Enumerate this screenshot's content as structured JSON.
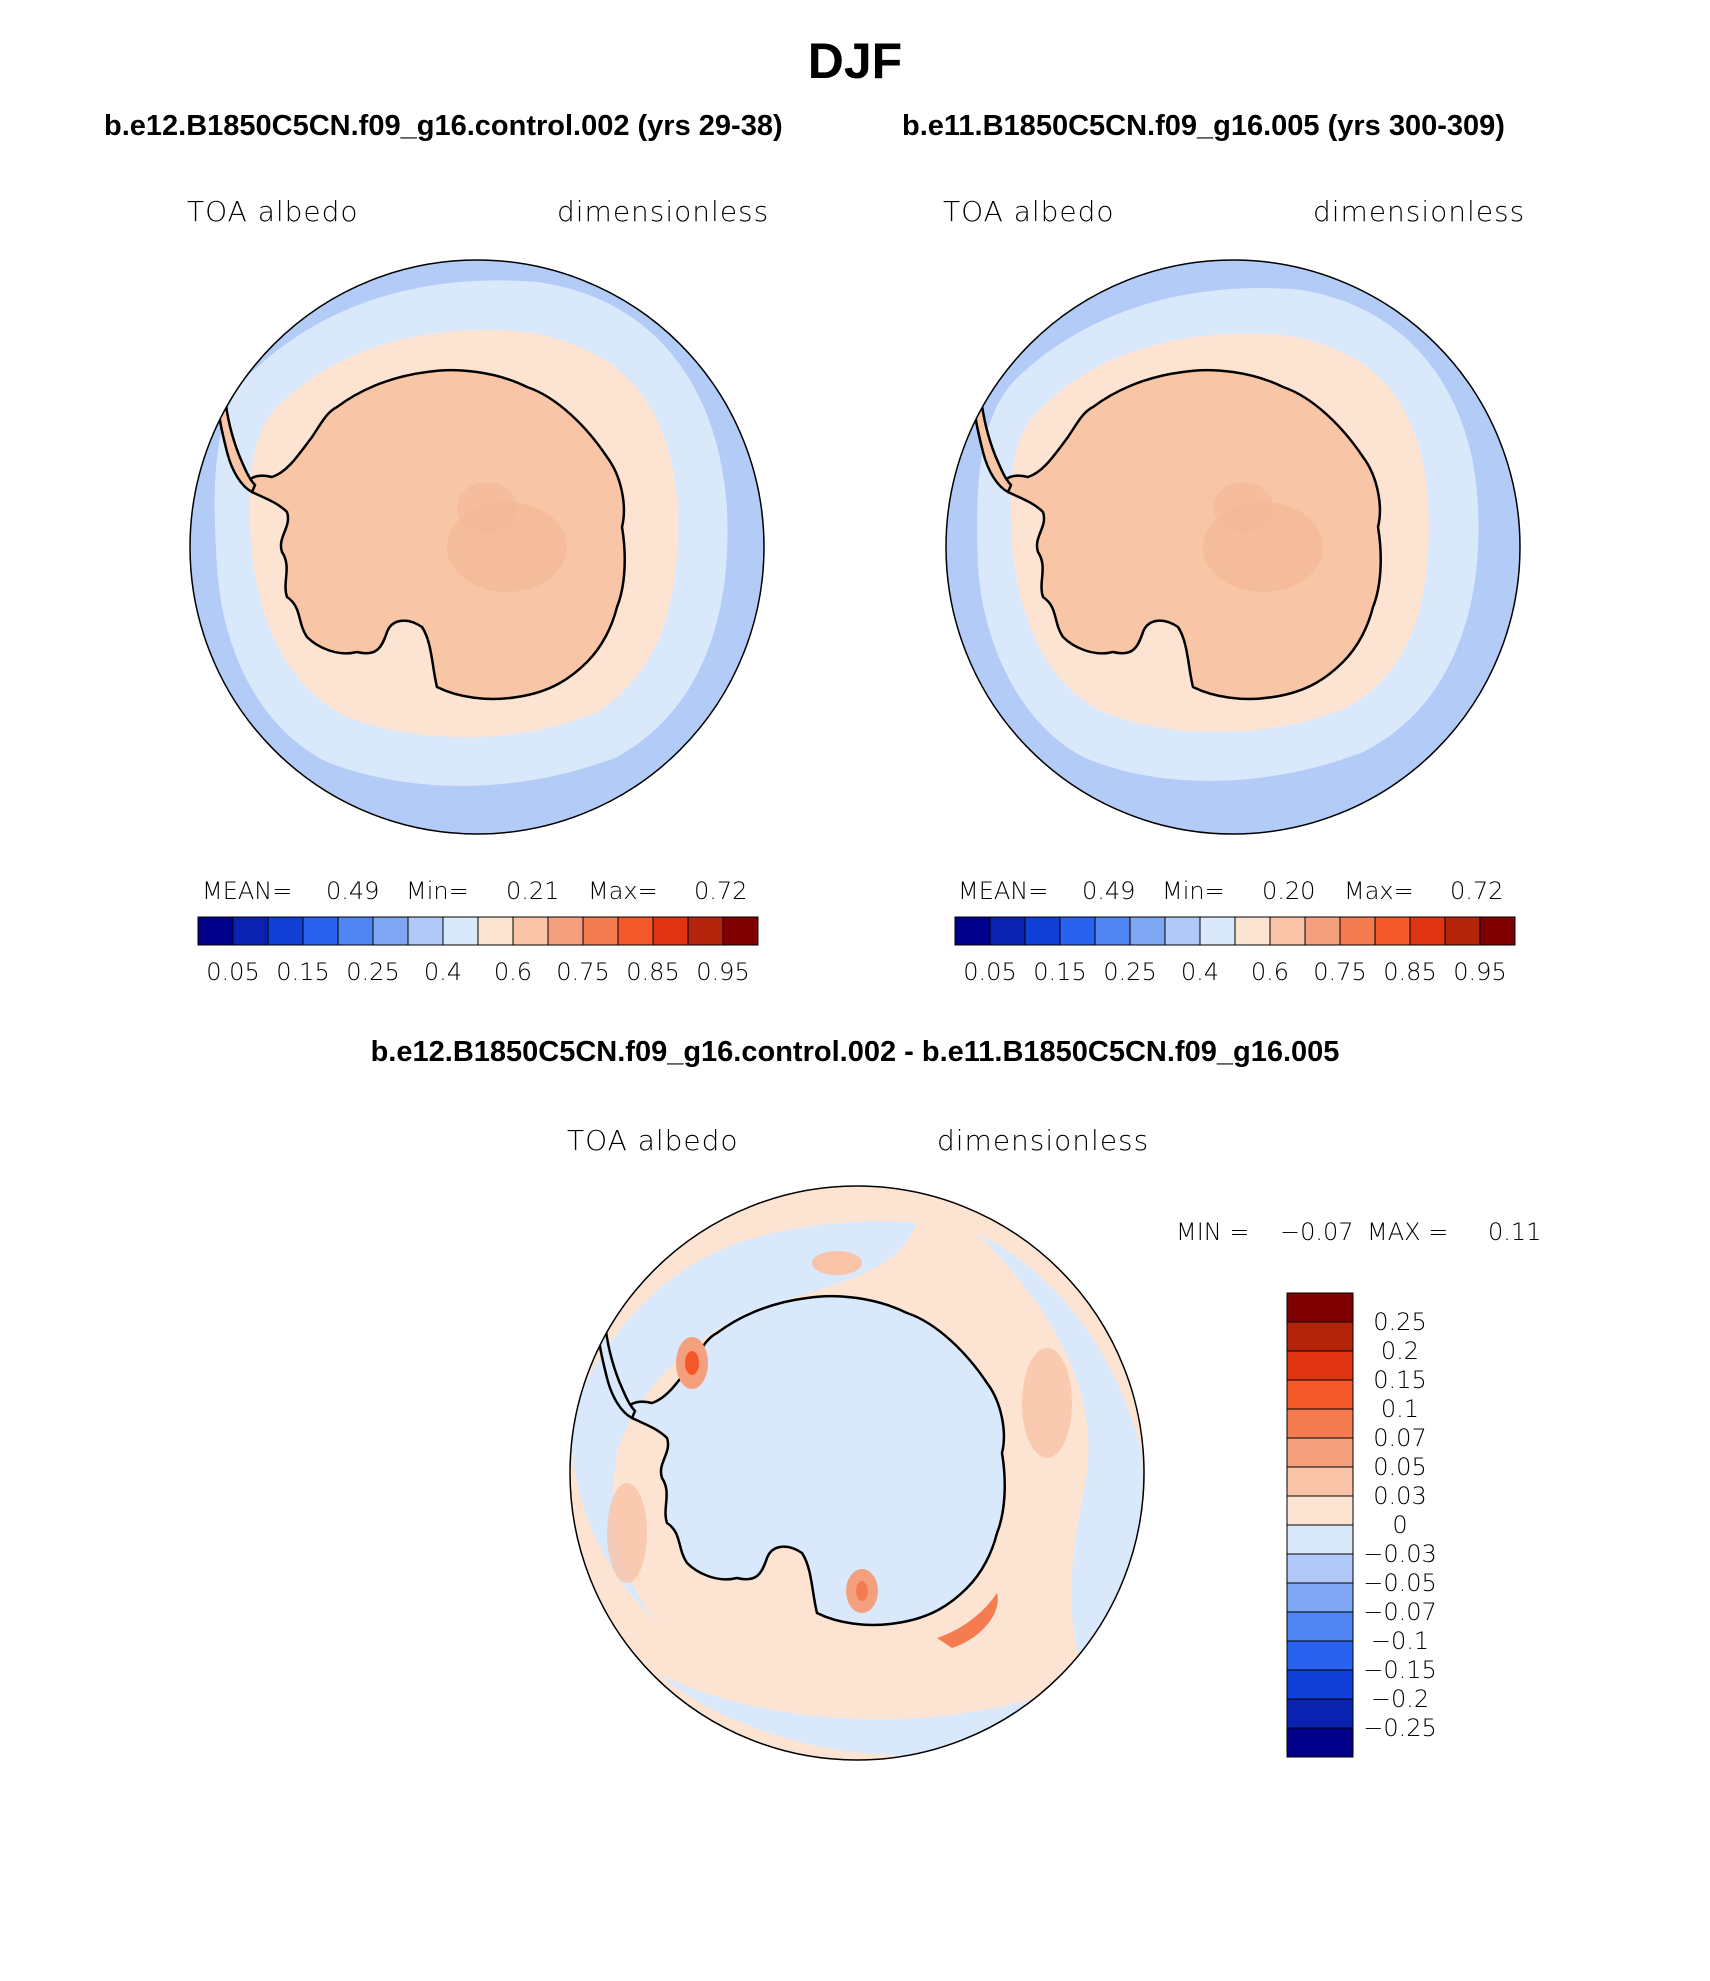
{
  "title": "DJF",
  "panels": [
    {
      "case_title": "b.e12.B1850C5CN.f09_g16.control.002 (yrs 29-38)",
      "var_label": "TOA albedo",
      "units": "dimensionless",
      "stats": {
        "mean_label": "MEAN=",
        "mean": "0.49",
        "min_label": "Min=",
        "min": "0.21",
        "max_label": "Max=",
        "max": "0.72"
      }
    },
    {
      "case_title": "b.e11.B1850C5CN.f09_g16.005 (yrs 300-309)",
      "var_label": "TOA albedo",
      "units": "dimensionless",
      "stats": {
        "mean_label": "MEAN=",
        "mean": "0.49",
        "min_label": "Min=",
        "min": "0.20",
        "max_label": "Max=",
        "max": "0.72"
      }
    }
  ],
  "abs_colorbar": {
    "colors": [
      "#00008b",
      "#0a22b0",
      "#1040d8",
      "#2a62f0",
      "#4f84f3",
      "#7fa6f2",
      "#b0c9f8",
      "#d9e8fb",
      "#fde4d2",
      "#f9c3a8",
      "#f4a07e",
      "#f57c50",
      "#f45728",
      "#df3311",
      "#b3240a",
      "#7e0000"
    ],
    "tick_labels": [
      "0.05",
      "0.15",
      "0.25",
      "0.4",
      "0.6",
      "0.75",
      "0.85",
      "0.95"
    ]
  },
  "diff_panel": {
    "case_title": "b.e12.B1850C5CN.f09_g16.control.002 - b.e11.B1850C5CN.f09_g16.005",
    "var_label": "TOA albedo",
    "units": "dimensionless",
    "stats": {
      "min_label": "MIN =",
      "min": "−0.07",
      "max_label": "MAX =",
      "max": "0.11"
    }
  },
  "diff_colorbar": {
    "colors_top_to_bottom": [
      "#7e0000",
      "#b3240a",
      "#df3311",
      "#f45728",
      "#f57c50",
      "#f4a07e",
      "#f9c3a8",
      "#fde4d2",
      "#d9e8fb",
      "#b0c9f8",
      "#7fa6f2",
      "#4f84f3",
      "#2a62f0",
      "#1040d8",
      "#0a22b0",
      "#00008b"
    ],
    "tick_labels_top_to_bottom": [
      "0.25",
      "0.2",
      "0.15",
      "0.1",
      "0.07",
      "0.05",
      "0.03",
      "0",
      "−0.03",
      "−0.05",
      "−0.07",
      "−0.1",
      "−0.15",
      "−0.2",
      "−0.25"
    ]
  },
  "colors": {
    "ocean_far": "#b3cbf7",
    "ocean_mid": "#d9e8fb",
    "sea_ice": "#fde4d2",
    "continent": "#f8c6a6",
    "coastline": "#000000"
  }
}
